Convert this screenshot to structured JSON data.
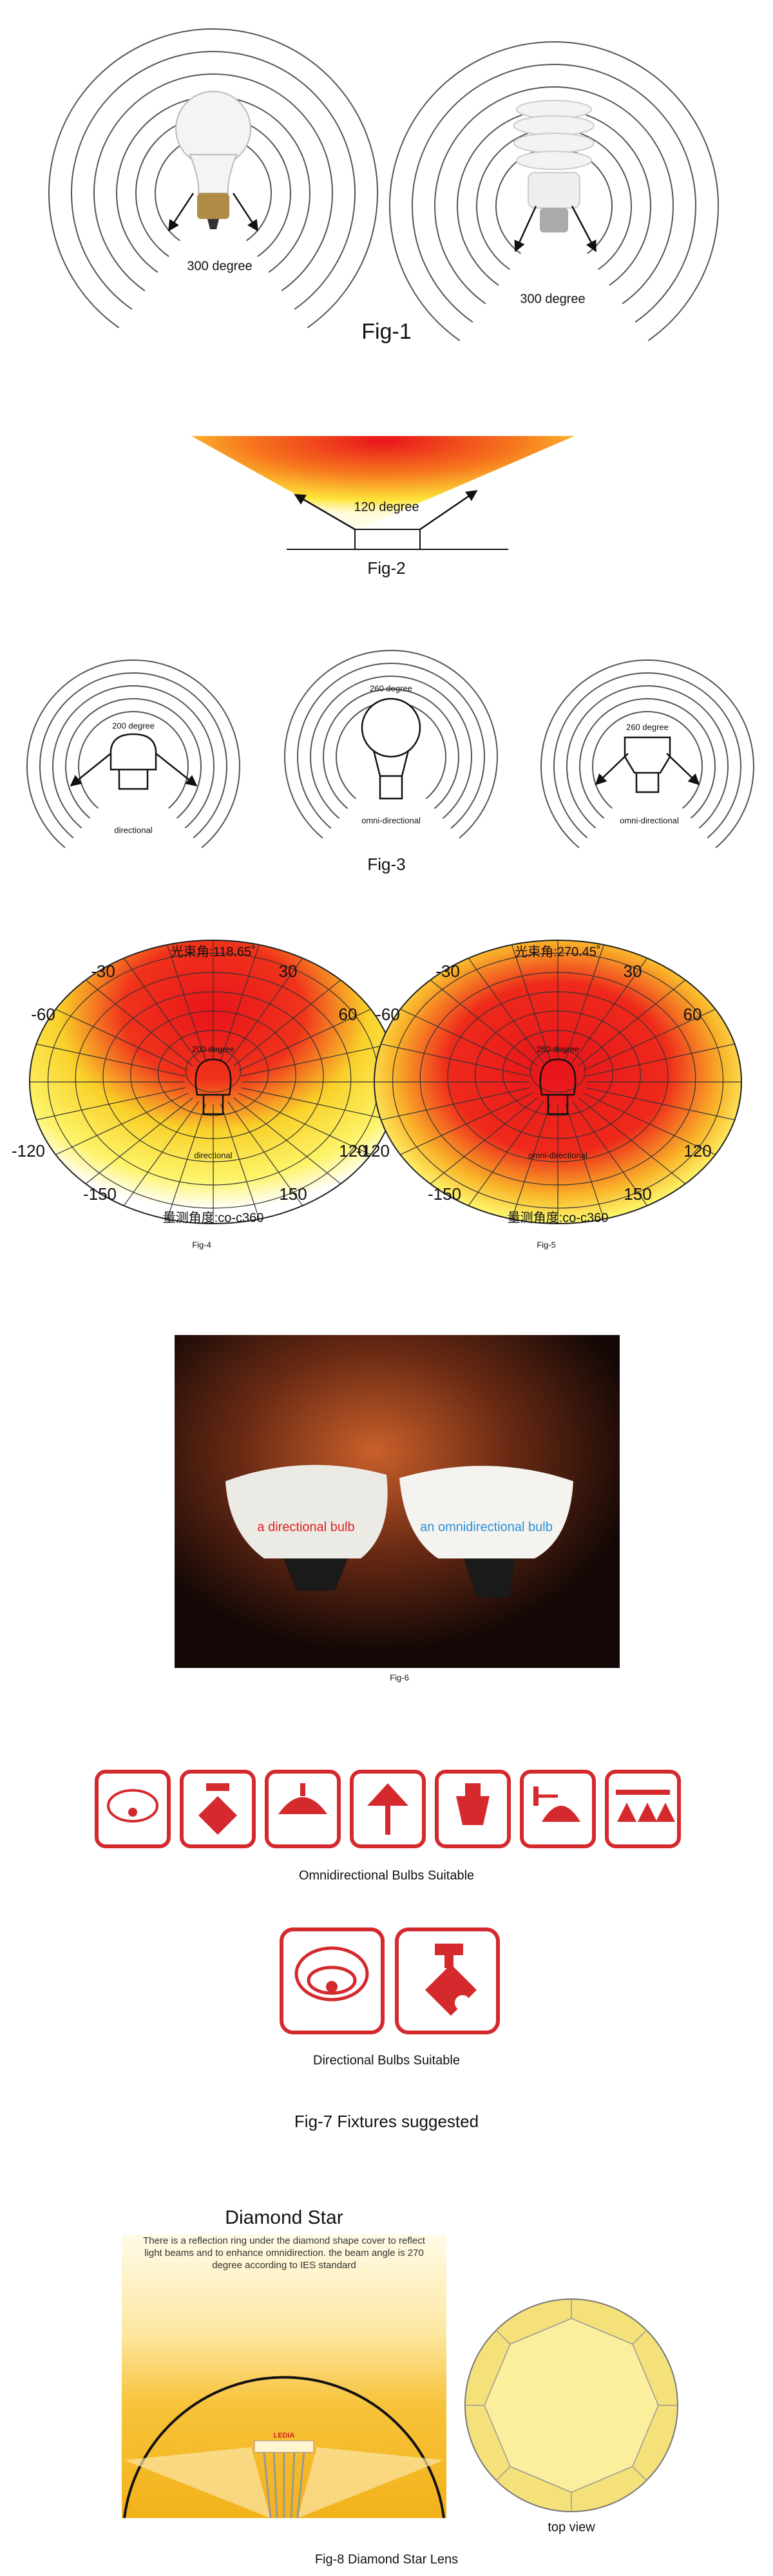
{
  "figures": [
    {
      "caption": "Fig-1",
      "labels": [
        "300 degree",
        "300 degree"
      ]
    },
    {
      "caption": "Fig-2",
      "labels": [
        "120 degree"
      ]
    },
    {
      "caption": "Fig-3",
      "labels": [
        "200 degree",
        "directional",
        "260 degree",
        "omni-directional",
        "260 degree",
        "omni-directional"
      ]
    },
    {
      "caption": "Fig-4",
      "beam_angle": "光束角:118.65˚",
      "measure_angle": "量测角度:co-c360",
      "angle_labels": [
        "-30",
        "30",
        "-60",
        "60",
        "-120",
        "120",
        "-150",
        "150"
      ],
      "inner_labels": [
        "200 degree",
        "directional"
      ]
    },
    {
      "caption": "Fig-5",
      "beam_angle": "光束角:270.45˚",
      "measure_angle": "量测角度:co-c360",
      "angle_labels": [
        "-30",
        "30",
        "-60",
        "60",
        "-120",
        "120",
        "-150",
        "150"
      ],
      "inner_labels": [
        "260 degree",
        "omni-directional"
      ]
    },
    {
      "caption": "Fig-6",
      "labels": [
        "a directional bulb",
        "an omnidirectional bulb"
      ]
    },
    {
      "caption": "Fig-7 Fixtures suggested",
      "groups": [
        "Omnidirectional Bulbs Suitable",
        "Directional Bulbs Suitable"
      ]
    },
    {
      "caption": "Fig-8 Diamond Star Lens",
      "title": "Diamond Star",
      "description": "There is a reflection ring under the diamond shape cover to reflect light beams and to enhance omnidirection. the beam angle is 270 degree according to IES standard",
      "brand": "LEDIA",
      "view_label": "top view"
    }
  ]
}
